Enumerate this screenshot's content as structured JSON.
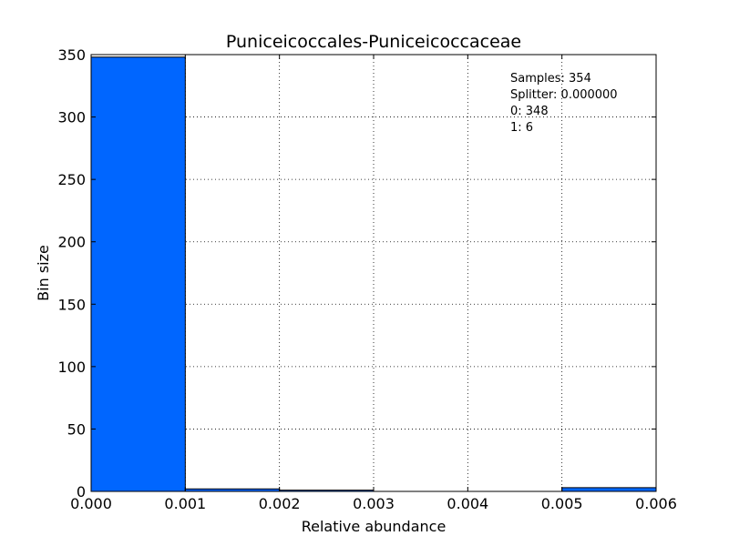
{
  "chart_data": {
    "type": "bar",
    "title": "Puniceicoccales-Puniceicoccaceae",
    "xlabel": "Relative abundance",
    "ylabel": "Bin size",
    "xlim": [
      0.0,
      0.006
    ],
    "ylim": [
      0,
      350
    ],
    "xticks": [
      "0.000",
      "0.001",
      "0.002",
      "0.003",
      "0.004",
      "0.005",
      "0.006"
    ],
    "yticks": [
      "0",
      "50",
      "100",
      "150",
      "200",
      "250",
      "300",
      "350"
    ],
    "bins": [
      {
        "x0": 0.0,
        "x1": 0.001,
        "value": 348
      },
      {
        "x0": 0.001,
        "x1": 0.002,
        "value": 2
      },
      {
        "x0": 0.002,
        "x1": 0.003,
        "value": 1
      },
      {
        "x0": 0.003,
        "x1": 0.004,
        "value": 0
      },
      {
        "x0": 0.004,
        "x1": 0.005,
        "value": 0
      },
      {
        "x0": 0.005,
        "x1": 0.006,
        "value": 3
      }
    ],
    "bar_color": "#0066ff",
    "grid": true,
    "annotations": [
      "Samples: 354",
      "Splitter: 0.000000",
      "0: 348",
      "1: 6"
    ],
    "annotation_placement": "top-right"
  }
}
